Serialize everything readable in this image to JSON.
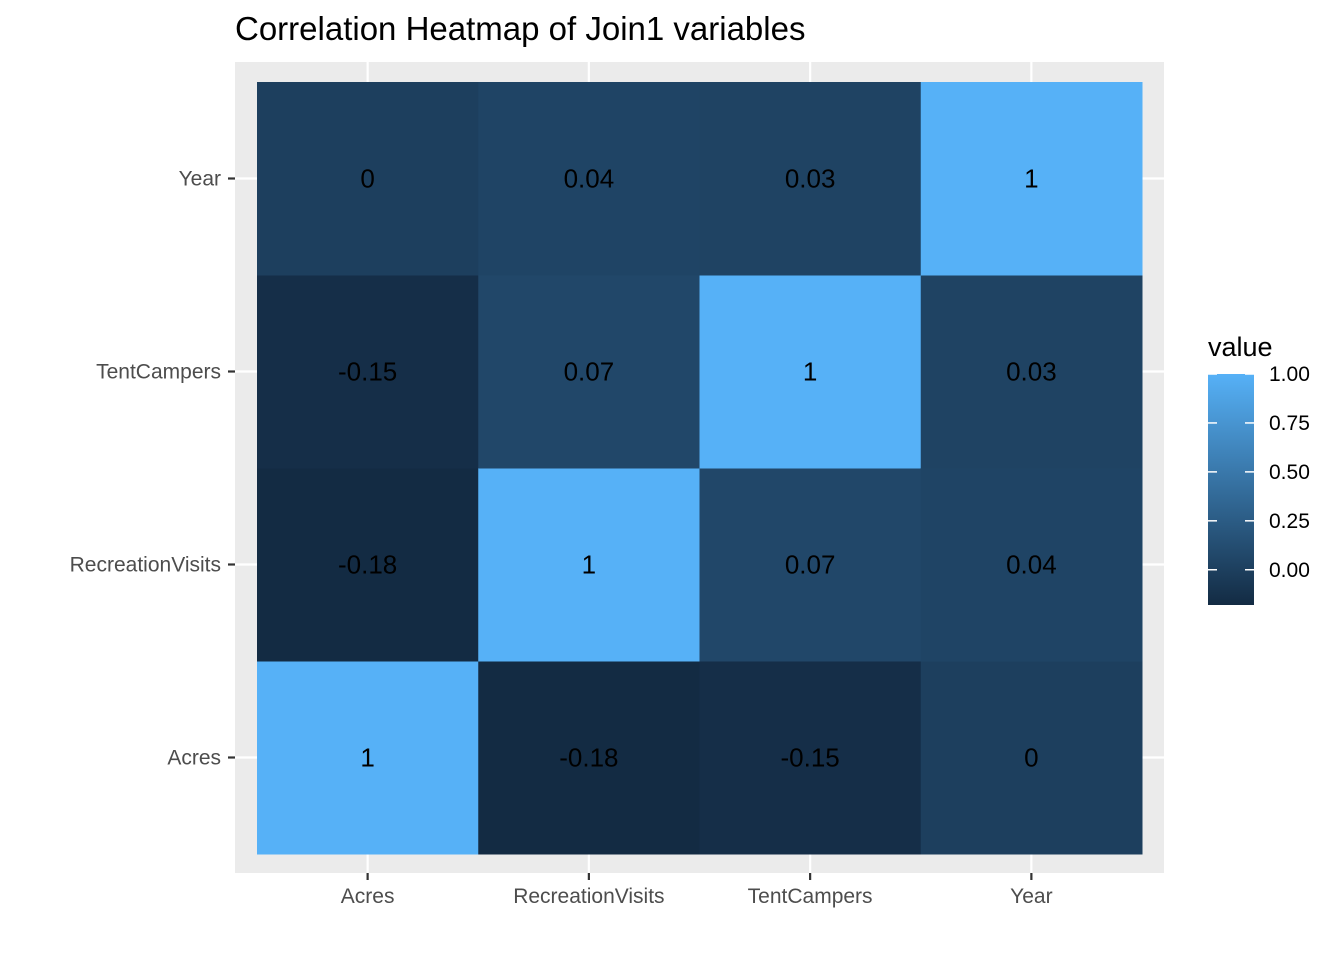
{
  "chart_data": {
    "type": "heatmap",
    "title": "Correlation Heatmap of Join1 variables",
    "xlabel": "",
    "ylabel": "",
    "x_categories": [
      "Acres",
      "RecreationVisits",
      "TentCampers",
      "Year"
    ],
    "y_categories": [
      "Acres",
      "RecreationVisits",
      "TentCampers",
      "Year"
    ],
    "matrix": [
      [
        1,
        -0.18,
        -0.15,
        0
      ],
      [
        -0.18,
        1,
        0.07,
        0.04
      ],
      [
        -0.15,
        0.07,
        1,
        0.03
      ],
      [
        0,
        0.04,
        0.03,
        1
      ]
    ],
    "legend": {
      "title": "value",
      "placement": "right",
      "ticks": [
        "1.00",
        "0.75",
        "0.50",
        "0.25",
        "0.00"
      ],
      "tick_values": [
        1,
        0.75,
        0.5,
        0.25,
        0
      ],
      "range": [
        -0.18,
        1
      ]
    },
    "colors": {
      "low": "#132B43",
      "high": "#56B1F7",
      "panel_bg": "#EBEBEB",
      "grid": "#FFFFFF"
    },
    "grid": true
  }
}
